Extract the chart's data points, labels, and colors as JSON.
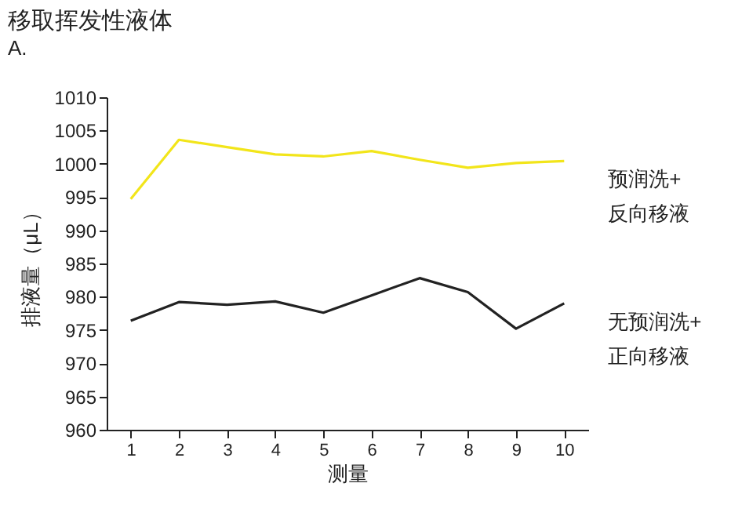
{
  "chart_data": {
    "type": "line",
    "title": "移取挥发性液体",
    "subtitle": "A.",
    "xlabel": "测量",
    "ylabel": "排液量（μL）",
    "x": [
      1,
      2,
      3,
      4,
      5,
      6,
      7,
      8,
      9,
      10
    ],
    "series": [
      {
        "name": "预润洗+\n反向移液",
        "color": "#f2e51a",
        "values": [
          994.7,
          1003.6,
          1002.5,
          1001.4,
          1001.1,
          1001.9,
          1000.6,
          999.4,
          1000.1,
          1000.4
        ]
      },
      {
        "name": "无预润洗+\n正向移液",
        "color": "#222222",
        "values": [
          976.4,
          979.2,
          978.8,
          979.3,
          977.6,
          980.2,
          982.8,
          980.7,
          975.2,
          979.0
        ]
      }
    ],
    "xlim": [
      0.5,
      10.5
    ],
    "xticks": [
      1,
      2,
      3,
      4,
      5,
      6,
      7,
      8,
      9,
      10
    ],
    "ylim": [
      960,
      1010
    ],
    "yticks": [
      960,
      965,
      970,
      975,
      980,
      985,
      990,
      995,
      1000,
      1005,
      1010
    ],
    "grid": false,
    "legend": false,
    "marker": "none",
    "line_style": "solid"
  }
}
